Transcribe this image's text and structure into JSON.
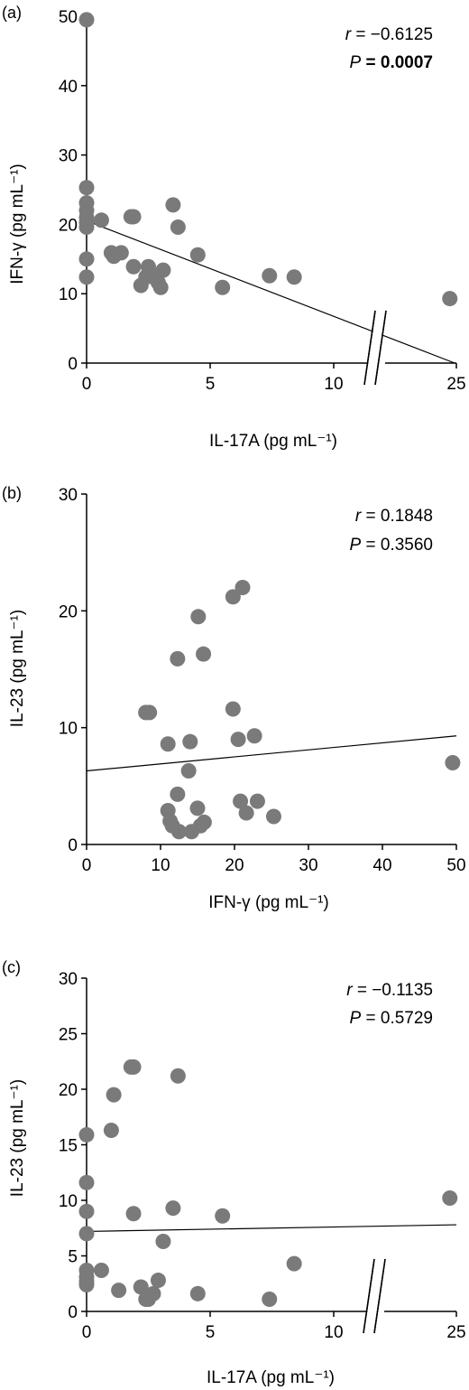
{
  "chart_data": [
    {
      "type": "scatter",
      "panel_label": "(a)",
      "xlabel": "IL-17A (pg mL⁻¹)",
      "ylabel": "IFN-γ (pg mL⁻¹)",
      "x_axis_break": true,
      "x_ticks": [
        "0",
        "5",
        "10",
        "25"
      ],
      "y_ticks": [
        "0",
        "10",
        "20",
        "30",
        "40",
        "50"
      ],
      "ylim": [
        0,
        50
      ],
      "stat_r": "r = −0.6125",
      "stat_p": "P = 0.0007",
      "points": [
        {
          "x": 0,
          "y": 49.5
        },
        {
          "x": 0,
          "y": 25.3
        },
        {
          "x": 0,
          "y": 23.1
        },
        {
          "x": 0,
          "y": 22.0
        },
        {
          "x": 0,
          "y": 21.0
        },
        {
          "x": 0,
          "y": 20.3
        },
        {
          "x": 0,
          "y": 19.6
        },
        {
          "x": 0,
          "y": 15.0
        },
        {
          "x": 0,
          "y": 12.4
        },
        {
          "x": 0.6,
          "y": 20.6
        },
        {
          "x": 1.0,
          "y": 15.9
        },
        {
          "x": 1.1,
          "y": 15.4
        },
        {
          "x": 1.4,
          "y": 15.9
        },
        {
          "x": 1.8,
          "y": 21.1
        },
        {
          "x": 1.9,
          "y": 21.1
        },
        {
          "x": 1.9,
          "y": 13.9
        },
        {
          "x": 2.2,
          "y": 11.2
        },
        {
          "x": 2.4,
          "y": 12.4
        },
        {
          "x": 2.5,
          "y": 13.9
        },
        {
          "x": 2.7,
          "y": 12.4
        },
        {
          "x": 2.9,
          "y": 11.6
        },
        {
          "x": 3.0,
          "y": 10.9
        },
        {
          "x": 3.1,
          "y": 13.4
        },
        {
          "x": 3.5,
          "y": 22.8
        },
        {
          "x": 3.7,
          "y": 19.6
        },
        {
          "x": 4.5,
          "y": 15.6
        },
        {
          "x": 5.5,
          "y": 10.9
        },
        {
          "x": 7.4,
          "y": 12.6
        },
        {
          "x": 8.4,
          "y": 12.4
        },
        {
          "x": 24.2,
          "y": 9.3
        }
      ],
      "fit_line": {
        "x": [
          0,
          24.8
        ],
        "y": [
          20.5,
          0
        ]
      }
    },
    {
      "type": "scatter",
      "panel_label": "(b)",
      "xlabel": "IFN-γ (pg mL⁻¹)",
      "ylabel": "IL-23 (pg mL⁻¹)",
      "x_ticks": [
        "0",
        "10",
        "20",
        "30",
        "40",
        "50"
      ],
      "y_ticks": [
        "0",
        "10",
        "20",
        "30"
      ],
      "xlim": [
        0,
        50
      ],
      "ylim": [
        0,
        30
      ],
      "stat_r": "r = 0.1848",
      "stat_p": "P = 0.3560",
      "points": [
        {
          "x": 8.0,
          "y": 11.3
        },
        {
          "x": 8.5,
          "y": 11.3
        },
        {
          "x": 11.0,
          "y": 8.6
        },
        {
          "x": 11.0,
          "y": 2.9
        },
        {
          "x": 11.3,
          "y": 2.0
        },
        {
          "x": 11.6,
          "y": 1.6
        },
        {
          "x": 12.3,
          "y": 15.9
        },
        {
          "x": 12.3,
          "y": 4.3
        },
        {
          "x": 12.5,
          "y": 1.1
        },
        {
          "x": 13.8,
          "y": 6.3
        },
        {
          "x": 14.0,
          "y": 8.8
        },
        {
          "x": 14.2,
          "y": 1.1
        },
        {
          "x": 15.1,
          "y": 19.5
        },
        {
          "x": 15.0,
          "y": 3.1
        },
        {
          "x": 15.4,
          "y": 1.6
        },
        {
          "x": 15.8,
          "y": 16.3
        },
        {
          "x": 15.9,
          "y": 1.9
        },
        {
          "x": 19.8,
          "y": 21.2
        },
        {
          "x": 19.8,
          "y": 11.6
        },
        {
          "x": 20.5,
          "y": 9.0
        },
        {
          "x": 20.8,
          "y": 3.7
        },
        {
          "x": 21.1,
          "y": 22.0
        },
        {
          "x": 21.6,
          "y": 2.7
        },
        {
          "x": 22.7,
          "y": 9.3
        },
        {
          "x": 23.1,
          "y": 3.7
        },
        {
          "x": 25.3,
          "y": 2.4
        },
        {
          "x": 49.5,
          "y": 7.0
        }
      ],
      "fit_line": {
        "x": [
          0,
          50
        ],
        "y": [
          6.3,
          9.3
        ]
      }
    },
    {
      "type": "scatter",
      "panel_label": "(c)",
      "xlabel": "IL-17A (pg mL⁻¹)",
      "ylabel": "IL-23 (pg mL⁻¹)",
      "x_axis_break": true,
      "x_ticks": [
        "0",
        "5",
        "10",
        "25"
      ],
      "y_ticks": [
        "0",
        "5",
        "10",
        "15",
        "20",
        "25",
        "30"
      ],
      "ylim": [
        0,
        30
      ],
      "stat_r": "r = −0.1135",
      "stat_p": "P = 0.5729",
      "points": [
        {
          "x": 0,
          "y": 15.9
        },
        {
          "x": 0,
          "y": 11.6
        },
        {
          "x": 0,
          "y": 9.0
        },
        {
          "x": 0,
          "y": 7.0
        },
        {
          "x": 0,
          "y": 3.7
        },
        {
          "x": 0,
          "y": 3.1
        },
        {
          "x": 0,
          "y": 2.7
        },
        {
          "x": 0,
          "y": 2.4
        },
        {
          "x": 0.6,
          "y": 3.7
        },
        {
          "x": 1.0,
          "y": 16.3
        },
        {
          "x": 1.1,
          "y": 19.5
        },
        {
          "x": 1.3,
          "y": 1.9
        },
        {
          "x": 1.8,
          "y": 22.0
        },
        {
          "x": 1.9,
          "y": 22.0
        },
        {
          "x": 1.9,
          "y": 8.8
        },
        {
          "x": 2.2,
          "y": 2.2
        },
        {
          "x": 2.4,
          "y": 1.1
        },
        {
          "x": 2.5,
          "y": 1.1
        },
        {
          "x": 2.7,
          "y": 1.6
        },
        {
          "x": 2.9,
          "y": 2.8
        },
        {
          "x": 3.1,
          "y": 6.3
        },
        {
          "x": 3.5,
          "y": 9.3
        },
        {
          "x": 3.7,
          "y": 21.2
        },
        {
          "x": 4.5,
          "y": 1.6
        },
        {
          "x": 5.5,
          "y": 8.6
        },
        {
          "x": 7.4,
          "y": 1.1
        },
        {
          "x": 8.4,
          "y": 4.3
        },
        {
          "x": 24.2,
          "y": 10.2
        }
      ],
      "fit_line": {
        "x": [
          0,
          25
        ],
        "y": [
          7.2,
          7.8
        ]
      }
    }
  ]
}
